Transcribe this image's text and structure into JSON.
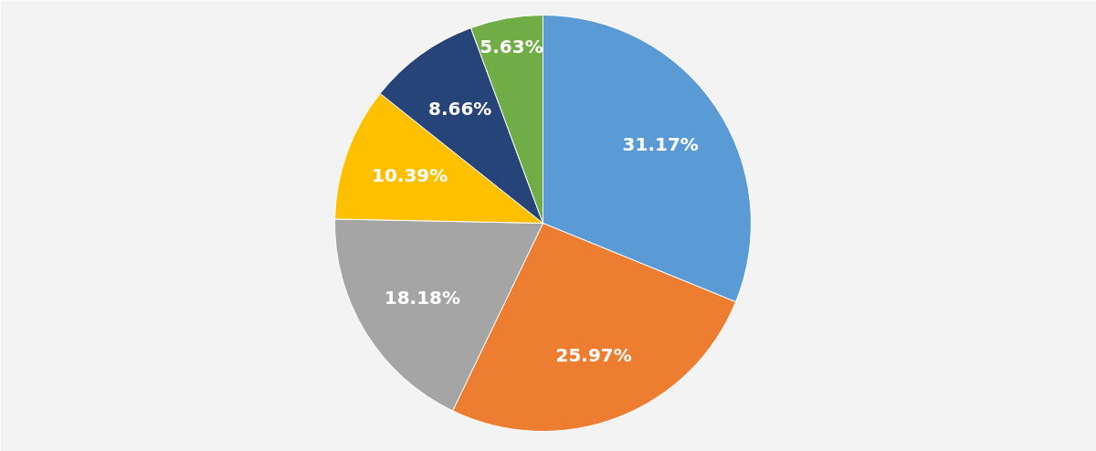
{
  "chart_data": {
    "type": "pie",
    "categories": [
      null,
      null,
      null,
      null,
      null,
      null
    ],
    "values": [
      31.17,
      25.97,
      18.18,
      10.39,
      8.66,
      5.63
    ],
    "colors": [
      "#5b9bd5",
      "#ed7d31",
      "#a5a5a5",
      "#ffc000",
      "#264478",
      "#70ad47"
    ],
    "value_labels": [
      "31.17%",
      "25.97%",
      "18.18%",
      "10.39%",
      "8.66%",
      "5.63%"
    ]
  }
}
